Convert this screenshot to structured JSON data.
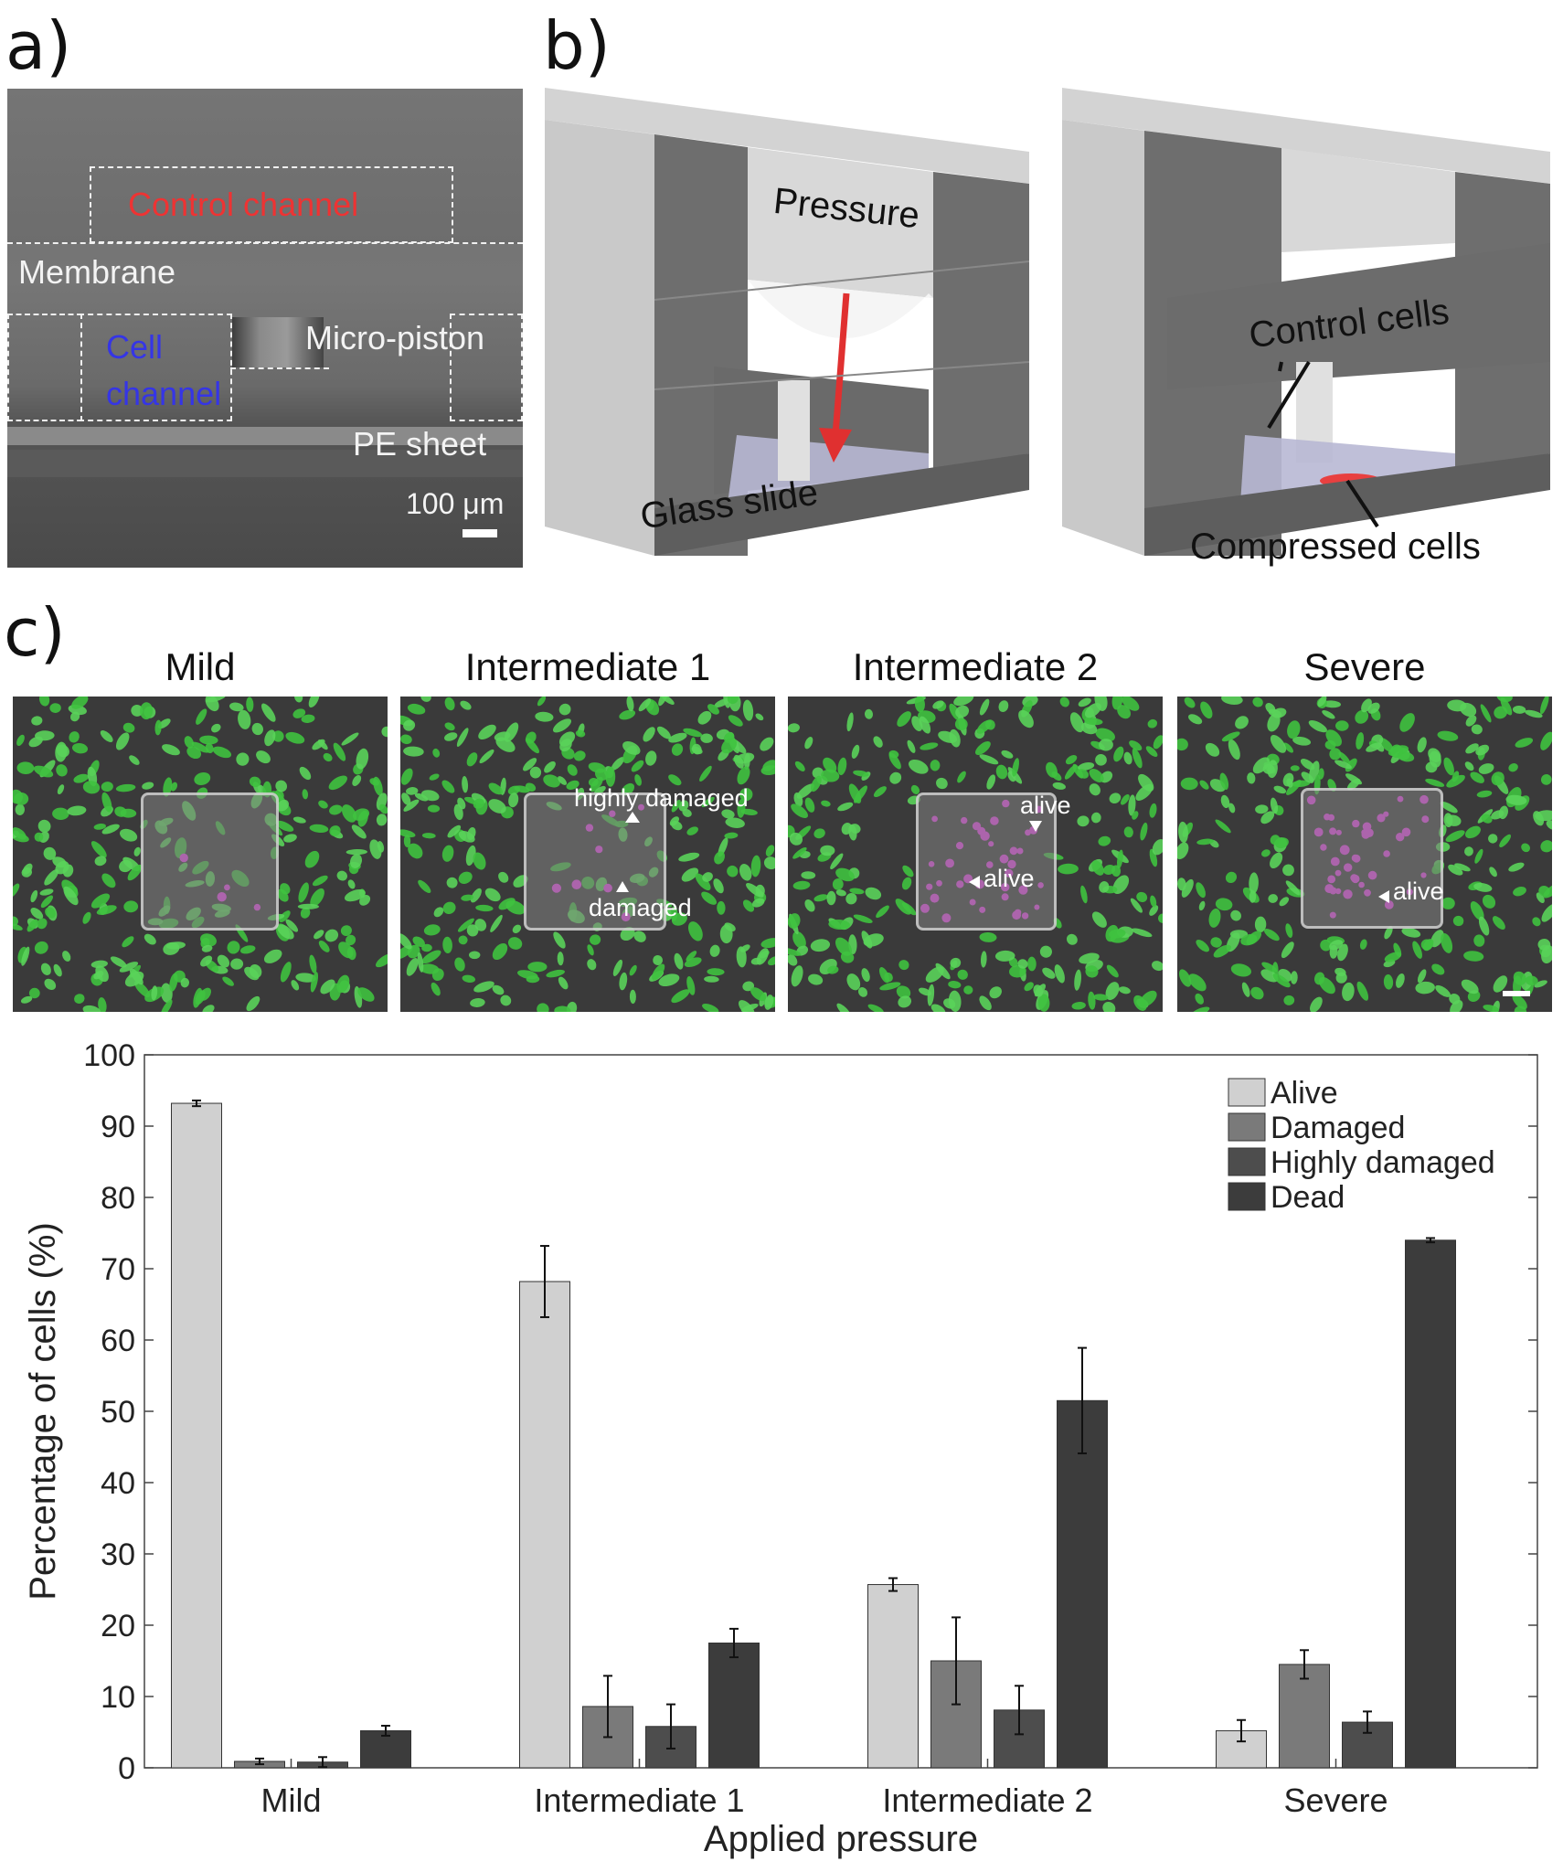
{
  "panel_labels": {
    "a": "a)",
    "b": "b)",
    "c": "c)"
  },
  "panel_a": {
    "control_channel": "Control channel",
    "membrane": "Membrane",
    "cell_channel_line1": "Cell",
    "cell_channel_line2": "channel",
    "micro_piston": "Micro-piston",
    "pe_sheet": "PE sheet",
    "scale_bar": "100 μm"
  },
  "panel_b": {
    "pressure": "Pressure",
    "glass_slide": "Glass slide",
    "control_cells": "Control cells",
    "compressed_cells": "Compressed cells",
    "colors": {
      "arrow": "#e03030",
      "compressed": "#e84040"
    }
  },
  "panel_c_images": [
    {
      "title": "Mild",
      "annotations": []
    },
    {
      "title": "Intermediate 1",
      "annotations": [
        "highly damaged",
        "damaged"
      ]
    },
    {
      "title": "Intermediate 2",
      "annotations": [
        "alive",
        "alive"
      ]
    },
    {
      "title": "Severe",
      "annotations": [
        "alive"
      ]
    }
  ],
  "chart_data": {
    "type": "bar",
    "categories": [
      "Mild",
      "Intermediate 1",
      "Intermediate 2",
      "Severe"
    ],
    "series": [
      {
        "name": "Alive",
        "color": "#d0d0d0",
        "values": [
          93.2,
          68.2,
          25.7,
          5.2
        ],
        "errors": [
          0.4,
          5.0,
          0.9,
          1.5
        ]
      },
      {
        "name": "Damaged",
        "color": "#7a7a7a",
        "values": [
          0.9,
          8.6,
          15.0,
          14.5
        ],
        "errors": [
          0.4,
          4.3,
          6.1,
          2.0
        ]
      },
      {
        "name": "Highly damaged",
        "color": "#4d4d4d",
        "values": [
          0.8,
          5.8,
          8.1,
          6.4
        ],
        "errors": [
          0.7,
          3.1,
          3.4,
          1.5
        ]
      },
      {
        "name": "Dead",
        "color": "#3c3c3c",
        "values": [
          5.2,
          17.5,
          51.5,
          74.0
        ],
        "errors": [
          0.7,
          2.0,
          7.4,
          0.3
        ]
      }
    ],
    "xlabel": "Applied pressure",
    "ylabel": "Percentage of cells (%)",
    "ylim": [
      0,
      100
    ],
    "yticks": [
      0,
      10,
      20,
      30,
      40,
      50,
      60,
      70,
      80,
      90,
      100
    ],
    "legend_position": "top-right",
    "grid": false
  }
}
